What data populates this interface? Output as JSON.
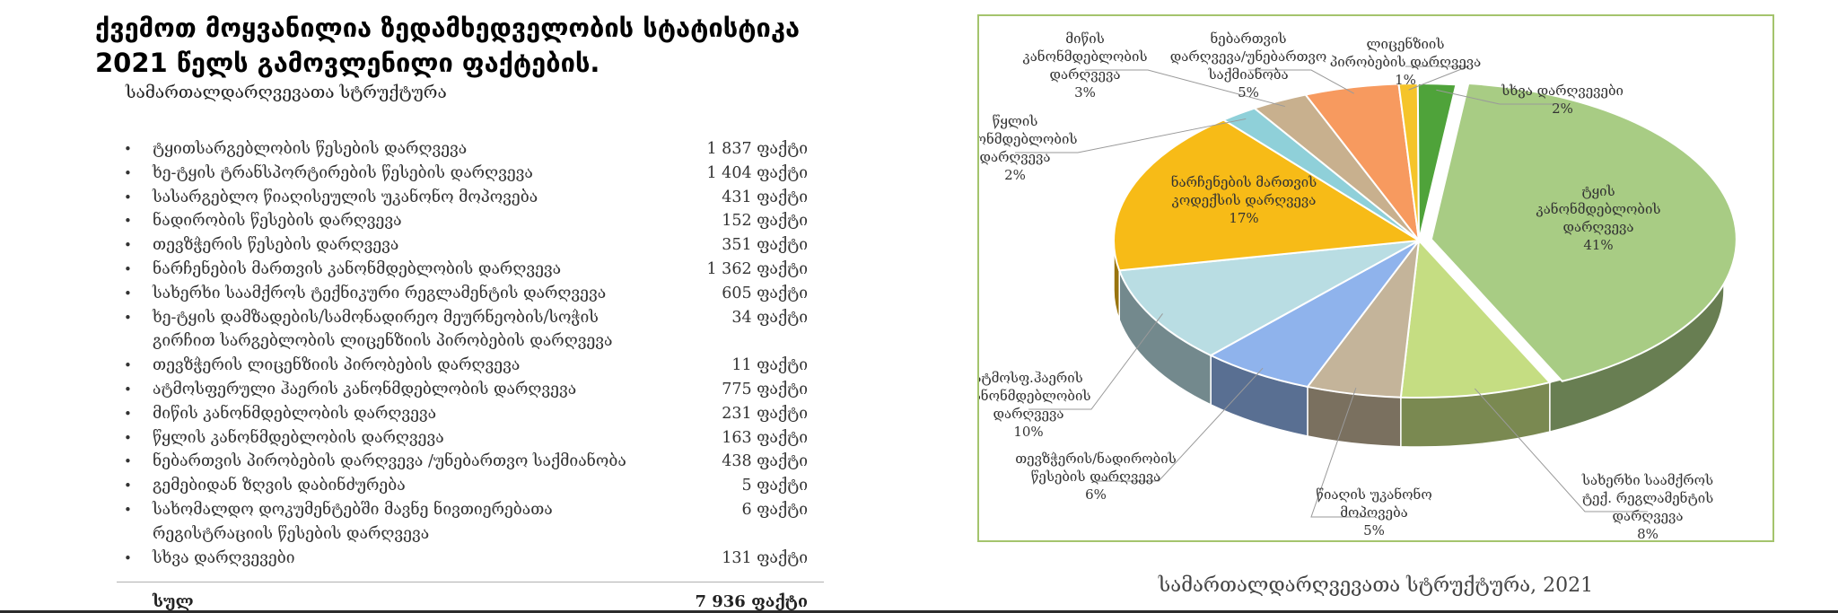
{
  "heading": "ქვემოთ მოყვანილია ზედამხედველობის სტატისტიკა 2021 წელს გამოვლენილი ფაქტების.",
  "subheading": "სამართალდარღვევათა სტრუქტურა",
  "violations": [
    {
      "label": "ტყითსარგებლობის წესების დარღვევა",
      "count": "1 837 ფაქტი"
    },
    {
      "label": "ხე-ტყის ტრანსპორტირების წესების დარღვევა",
      "count": "1 404 ფაქტი"
    },
    {
      "label": "სასარგებლო წიაღისეულის უკანონო მოპოვება",
      "count": "431 ფაქტი"
    },
    {
      "label": "ნადირობის წესების დარღვევა",
      "count": "152 ფაქტი"
    },
    {
      "label": "თევზჭერის წესების დარღვევა",
      "count": "351 ფაქტი"
    },
    {
      "label": "ნარჩენების მართვის კანონმდებლობის დარღვევა",
      "count": "1 362 ფაქტი"
    },
    {
      "label": "სახერხი საამქროს ტექნიკური რეგლამენტის დარღვევა",
      "count": "605 ფაქტი"
    },
    {
      "label": "ხე-ტყის დამზადების/სამონადირეო მეურნეობის/სოჭის გირჩით სარგებლობის ლიცენზიის პირობების დარღვევა",
      "count": "34 ფაქტი"
    },
    {
      "label": "თევზჭერის ლიცენზიის პირობების დარღვევა",
      "count": "11 ფაქტი"
    },
    {
      "label": "ატმოსფერული ჰაერის კანონმდებლობის დარღვევა",
      "count": "775 ფაქტი"
    },
    {
      "label": "მიწის კანონმდებლობის დარღვევა",
      "count": "231 ფაქტი"
    },
    {
      "label": "წყლის კანონმდებლობის დარღვევა",
      "count": "163 ფაქტი"
    },
    {
      "label": "ნებართვის პირობების დარღვევა /უნებართვო საქმიანობა",
      "count": "438 ფაქტი"
    },
    {
      "label": "გემებიდან ზღვის დაბინძურება",
      "count": "5 ფაქტი"
    },
    {
      "label": "სახომალდო დოკუმენტებში მავნე ნივთიერებათა რეგისტრაციის წესების დარღვევა",
      "count": "6 ფაქტი"
    },
    {
      "label": "სხვა დარღვევები",
      "count": "131 ფაქტი"
    }
  ],
  "total": {
    "label": "სულ",
    "count": "7 936 ფაქტი"
  },
  "chart_caption": "სამართალდარღვევათა სტრუქტურა, 2021",
  "chart_data": {
    "type": "pie",
    "title": "",
    "series": [
      {
        "slices": [
          {
            "label": "ტყის კანონმდებლობის დარღვევა",
            "value": 41,
            "pct_label": "41%",
            "color": "#a8cc84"
          },
          {
            "label": "სახერხი საამქროს ტექ. რეგლამენტის დარღვევა",
            "value": 8,
            "pct_label": "8%",
            "color": "#c5dd82"
          },
          {
            "label": "წიაღის უკანონო მოპოვება",
            "value": 5,
            "pct_label": "5%",
            "color": "#c4b49a"
          },
          {
            "label": "თევზჭერის/ნადირობის წესების დარღვევა",
            "value": 6,
            "pct_label": "6%",
            "color": "#8fb3ec"
          },
          {
            "label": "ატმოსფ.ჰაერის კანონმდებლობის დარღვევა",
            "value": 10,
            "pct_label": "10%",
            "color": "#b9dde3"
          },
          {
            "label": "ნარჩენების მართვის კოდექსის დარღვევა",
            "value": 17,
            "pct_label": "17%",
            "color": "#f7bb17"
          },
          {
            "label": "წყლის კანონმდებლობის დარღვევა",
            "value": 2,
            "pct_label": "2%",
            "color": "#8fd0d9"
          },
          {
            "label": "მიწის კანონმდებლობის დარღვევა",
            "value": 3,
            "pct_label": "3%",
            "color": "#c8b08e"
          },
          {
            "label": "ნებართვის დარღვევა/უნებართვო საქმიანობა",
            "value": 5,
            "pct_label": "5%",
            "color": "#f79a5f"
          },
          {
            "label": "ლიცენზიის პირობების დარღვევა",
            "value": 1,
            "pct_label": "1%",
            "color": "#f5c42a"
          },
          {
            "label": "სხვა დარღვევები",
            "value": 2,
            "pct_label": "2%",
            "color": "#4fa33a"
          }
        ]
      }
    ],
    "border_color": "#a4c46d"
  }
}
